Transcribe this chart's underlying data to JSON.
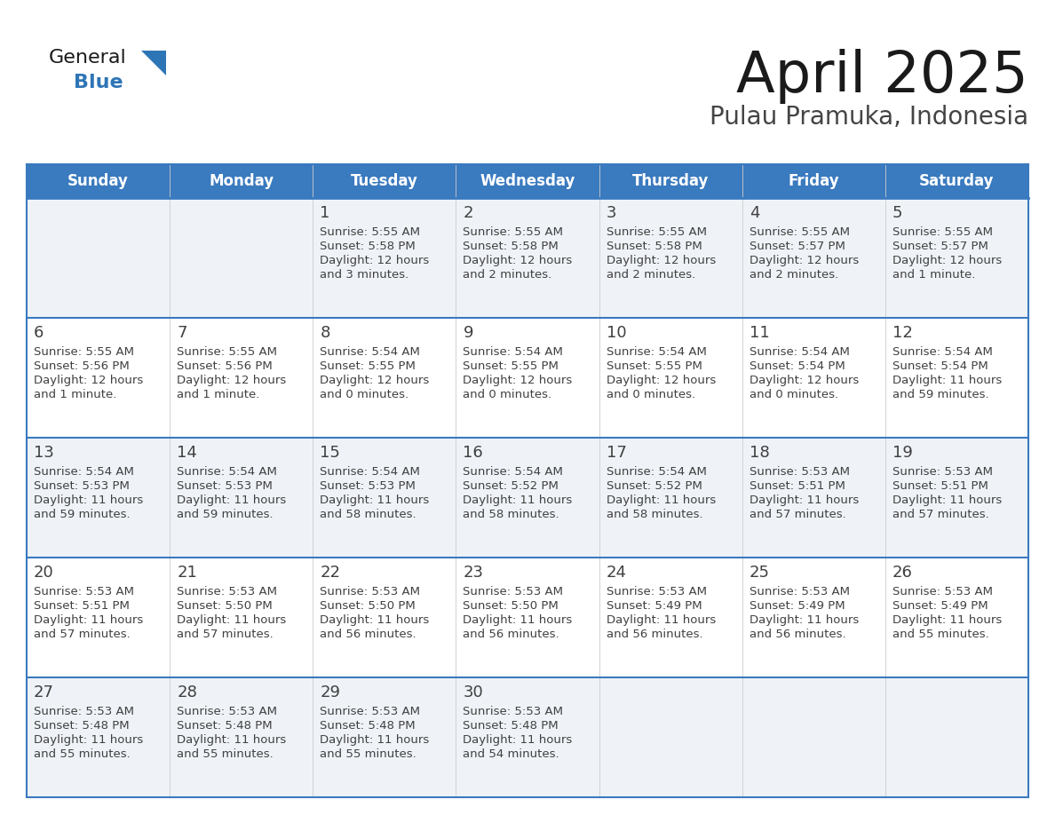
{
  "title": "April 2025",
  "subtitle": "Pulau Pramuka, Indonesia",
  "header_color": "#3a7abf",
  "header_text_color": "#ffffff",
  "day_names": [
    "Sunday",
    "Monday",
    "Tuesday",
    "Wednesday",
    "Thursday",
    "Friday",
    "Saturday"
  ],
  "background_color": "#ffffff",
  "cell_bg_row0": "#eff3f8",
  "cell_bg_row1": "#ffffff",
  "cell_bg_row2": "#eff3f8",
  "cell_bg_row3": "#ffffff",
  "cell_bg_row4": "#eff3f8",
  "row_line_color": "#3a7abf",
  "text_color": "#404040",
  "title_color": "#1a1a1a",
  "subtitle_color": "#444444",
  "logo_general_color": "#1a1a1a",
  "logo_blue_color": "#2e75b6",
  "logo_triangle_color": "#2e75b6",
  "days": [
    {
      "day": 1,
      "col": 2,
      "row": 0,
      "sunrise": "5:55 AM",
      "sunset": "5:58 PM",
      "daylight_line1": "Daylight: 12 hours",
      "daylight_line2": "and 3 minutes."
    },
    {
      "day": 2,
      "col": 3,
      "row": 0,
      "sunrise": "5:55 AM",
      "sunset": "5:58 PM",
      "daylight_line1": "Daylight: 12 hours",
      "daylight_line2": "and 2 minutes."
    },
    {
      "day": 3,
      "col": 4,
      "row": 0,
      "sunrise": "5:55 AM",
      "sunset": "5:58 PM",
      "daylight_line1": "Daylight: 12 hours",
      "daylight_line2": "and 2 minutes."
    },
    {
      "day": 4,
      "col": 5,
      "row": 0,
      "sunrise": "5:55 AM",
      "sunset": "5:57 PM",
      "daylight_line1": "Daylight: 12 hours",
      "daylight_line2": "and 2 minutes."
    },
    {
      "day": 5,
      "col": 6,
      "row": 0,
      "sunrise": "5:55 AM",
      "sunset": "5:57 PM",
      "daylight_line1": "Daylight: 12 hours",
      "daylight_line2": "and 1 minute."
    },
    {
      "day": 6,
      "col": 0,
      "row": 1,
      "sunrise": "5:55 AM",
      "sunset": "5:56 PM",
      "daylight_line1": "Daylight: 12 hours",
      "daylight_line2": "and 1 minute."
    },
    {
      "day": 7,
      "col": 1,
      "row": 1,
      "sunrise": "5:55 AM",
      "sunset": "5:56 PM",
      "daylight_line1": "Daylight: 12 hours",
      "daylight_line2": "and 1 minute."
    },
    {
      "day": 8,
      "col": 2,
      "row": 1,
      "sunrise": "5:54 AM",
      "sunset": "5:55 PM",
      "daylight_line1": "Daylight: 12 hours",
      "daylight_line2": "and 0 minutes."
    },
    {
      "day": 9,
      "col": 3,
      "row": 1,
      "sunrise": "5:54 AM",
      "sunset": "5:55 PM",
      "daylight_line1": "Daylight: 12 hours",
      "daylight_line2": "and 0 minutes."
    },
    {
      "day": 10,
      "col": 4,
      "row": 1,
      "sunrise": "5:54 AM",
      "sunset": "5:55 PM",
      "daylight_line1": "Daylight: 12 hours",
      "daylight_line2": "and 0 minutes."
    },
    {
      "day": 11,
      "col": 5,
      "row": 1,
      "sunrise": "5:54 AM",
      "sunset": "5:54 PM",
      "daylight_line1": "Daylight: 12 hours",
      "daylight_line2": "and 0 minutes."
    },
    {
      "day": 12,
      "col": 6,
      "row": 1,
      "sunrise": "5:54 AM",
      "sunset": "5:54 PM",
      "daylight_line1": "Daylight: 11 hours",
      "daylight_line2": "and 59 minutes."
    },
    {
      "day": 13,
      "col": 0,
      "row": 2,
      "sunrise": "5:54 AM",
      "sunset": "5:53 PM",
      "daylight_line1": "Daylight: 11 hours",
      "daylight_line2": "and 59 minutes."
    },
    {
      "day": 14,
      "col": 1,
      "row": 2,
      "sunrise": "5:54 AM",
      "sunset": "5:53 PM",
      "daylight_line1": "Daylight: 11 hours",
      "daylight_line2": "and 59 minutes."
    },
    {
      "day": 15,
      "col": 2,
      "row": 2,
      "sunrise": "5:54 AM",
      "sunset": "5:53 PM",
      "daylight_line1": "Daylight: 11 hours",
      "daylight_line2": "and 58 minutes."
    },
    {
      "day": 16,
      "col": 3,
      "row": 2,
      "sunrise": "5:54 AM",
      "sunset": "5:52 PM",
      "daylight_line1": "Daylight: 11 hours",
      "daylight_line2": "and 58 minutes."
    },
    {
      "day": 17,
      "col": 4,
      "row": 2,
      "sunrise": "5:54 AM",
      "sunset": "5:52 PM",
      "daylight_line1": "Daylight: 11 hours",
      "daylight_line2": "and 58 minutes."
    },
    {
      "day": 18,
      "col": 5,
      "row": 2,
      "sunrise": "5:53 AM",
      "sunset": "5:51 PM",
      "daylight_line1": "Daylight: 11 hours",
      "daylight_line2": "and 57 minutes."
    },
    {
      "day": 19,
      "col": 6,
      "row": 2,
      "sunrise": "5:53 AM",
      "sunset": "5:51 PM",
      "daylight_line1": "Daylight: 11 hours",
      "daylight_line2": "and 57 minutes."
    },
    {
      "day": 20,
      "col": 0,
      "row": 3,
      "sunrise": "5:53 AM",
      "sunset": "5:51 PM",
      "daylight_line1": "Daylight: 11 hours",
      "daylight_line2": "and 57 minutes."
    },
    {
      "day": 21,
      "col": 1,
      "row": 3,
      "sunrise": "5:53 AM",
      "sunset": "5:50 PM",
      "daylight_line1": "Daylight: 11 hours",
      "daylight_line2": "and 57 minutes."
    },
    {
      "day": 22,
      "col": 2,
      "row": 3,
      "sunrise": "5:53 AM",
      "sunset": "5:50 PM",
      "daylight_line1": "Daylight: 11 hours",
      "daylight_line2": "and 56 minutes."
    },
    {
      "day": 23,
      "col": 3,
      "row": 3,
      "sunrise": "5:53 AM",
      "sunset": "5:50 PM",
      "daylight_line1": "Daylight: 11 hours",
      "daylight_line2": "and 56 minutes."
    },
    {
      "day": 24,
      "col": 4,
      "row": 3,
      "sunrise": "5:53 AM",
      "sunset": "5:49 PM",
      "daylight_line1": "Daylight: 11 hours",
      "daylight_line2": "and 56 minutes."
    },
    {
      "day": 25,
      "col": 5,
      "row": 3,
      "sunrise": "5:53 AM",
      "sunset": "5:49 PM",
      "daylight_line1": "Daylight: 11 hours",
      "daylight_line2": "and 56 minutes."
    },
    {
      "day": 26,
      "col": 6,
      "row": 3,
      "sunrise": "5:53 AM",
      "sunset": "5:49 PM",
      "daylight_line1": "Daylight: 11 hours",
      "daylight_line2": "and 55 minutes."
    },
    {
      "day": 27,
      "col": 0,
      "row": 4,
      "sunrise": "5:53 AM",
      "sunset": "5:48 PM",
      "daylight_line1": "Daylight: 11 hours",
      "daylight_line2": "and 55 minutes."
    },
    {
      "day": 28,
      "col": 1,
      "row": 4,
      "sunrise": "5:53 AM",
      "sunset": "5:48 PM",
      "daylight_line1": "Daylight: 11 hours",
      "daylight_line2": "and 55 minutes."
    },
    {
      "day": 29,
      "col": 2,
      "row": 4,
      "sunrise": "5:53 AM",
      "sunset": "5:48 PM",
      "daylight_line1": "Daylight: 11 hours",
      "daylight_line2": "and 55 minutes."
    },
    {
      "day": 30,
      "col": 3,
      "row": 4,
      "sunrise": "5:53 AM",
      "sunset": "5:48 PM",
      "daylight_line1": "Daylight: 11 hours",
      "daylight_line2": "and 54 minutes."
    }
  ]
}
